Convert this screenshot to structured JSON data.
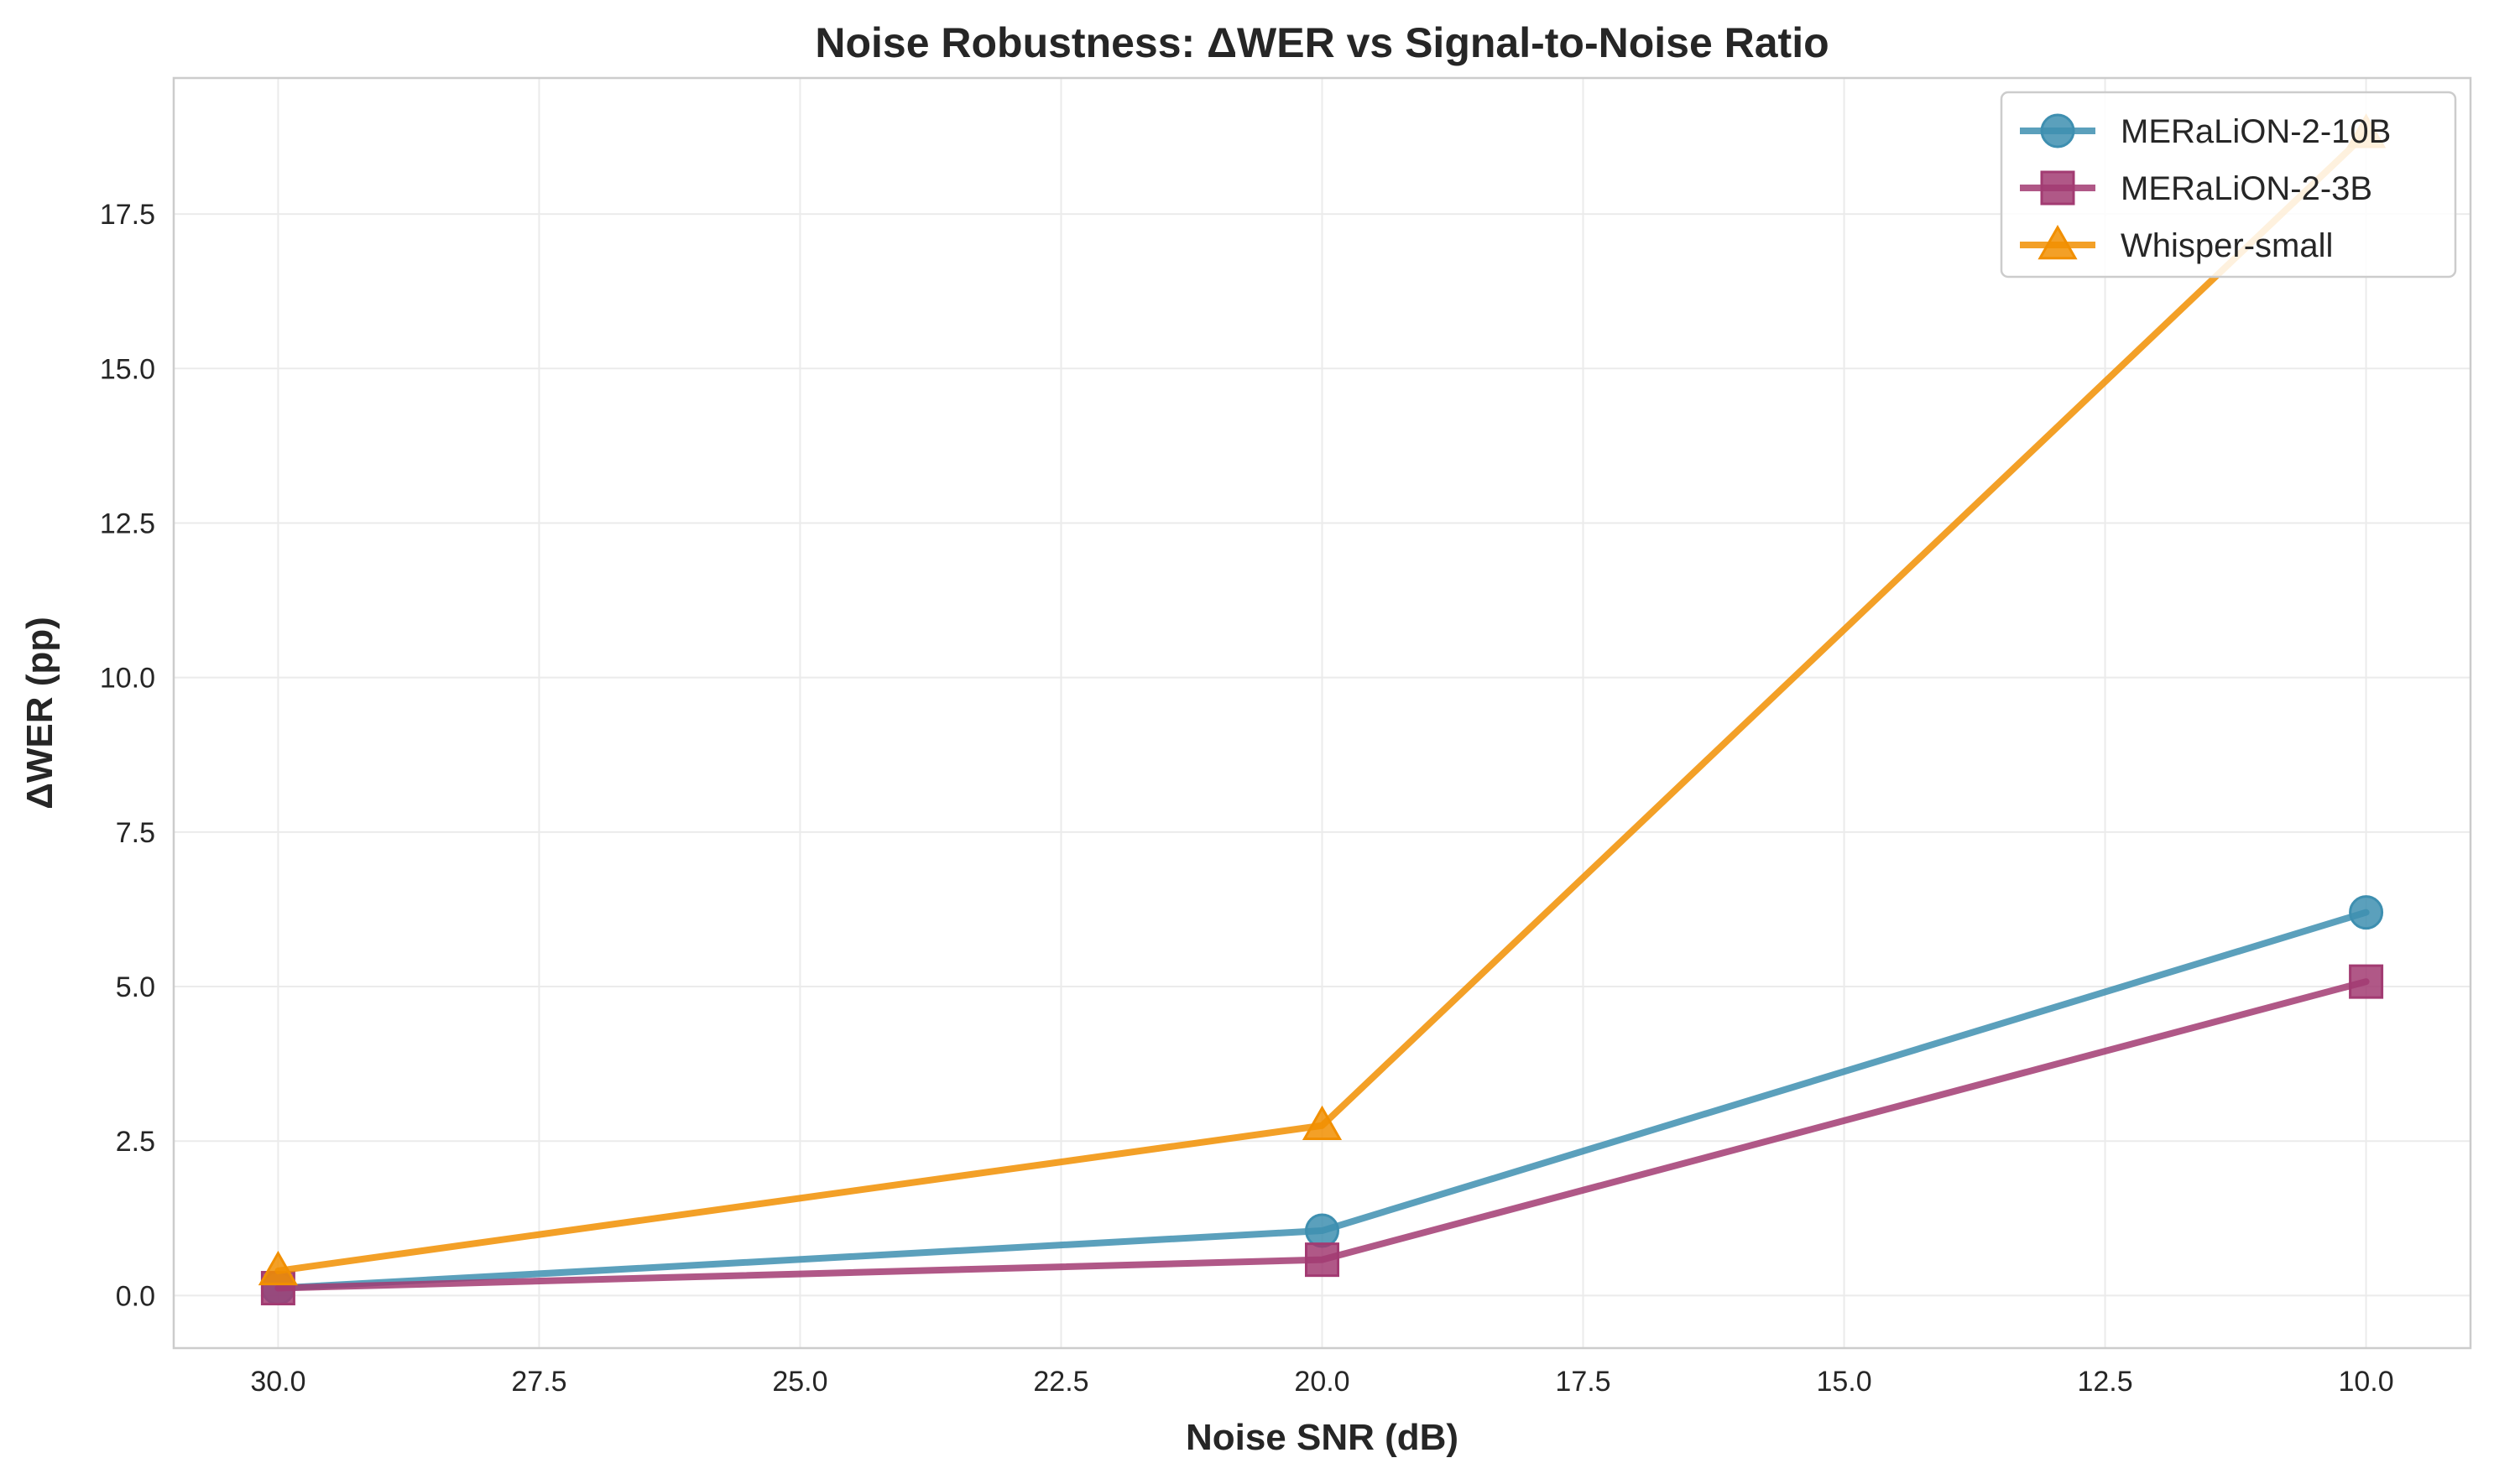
{
  "chart_data": {
    "type": "line",
    "title": "Noise Robustness: ΔWER vs Signal-to-Noise Ratio",
    "xlabel": "Noise SNR (dB)",
    "ylabel": "ΔWER (pp)",
    "x": [
      30,
      20,
      10
    ],
    "xlim": [
      31,
      9
    ],
    "ylim": [
      -0.85,
      19.7
    ],
    "x_inverted": true,
    "xticks": [
      "30.0",
      "27.5",
      "25.0",
      "22.5",
      "20.0",
      "17.5",
      "15.0",
      "12.5",
      "10.0"
    ],
    "yticks": [
      "0.0",
      "2.5",
      "5.0",
      "7.5",
      "10.0",
      "12.5",
      "15.0",
      "17.5"
    ],
    "grid": true,
    "legend_position": "top-right",
    "series": [
      {
        "name": "MERaLiON-2-10B",
        "values": [
          0.12,
          1.05,
          6.2
        ],
        "color": "#3e8fb0",
        "marker": "circle"
      },
      {
        "name": "MERaLiON-2-3B",
        "values": [
          0.12,
          0.58,
          5.08
        ],
        "color": "#a23b72",
        "marker": "square"
      },
      {
        "name": "Whisper-small",
        "values": [
          0.4,
          2.75,
          18.8
        ],
        "color": "#f18f01",
        "marker": "triangle"
      }
    ]
  }
}
